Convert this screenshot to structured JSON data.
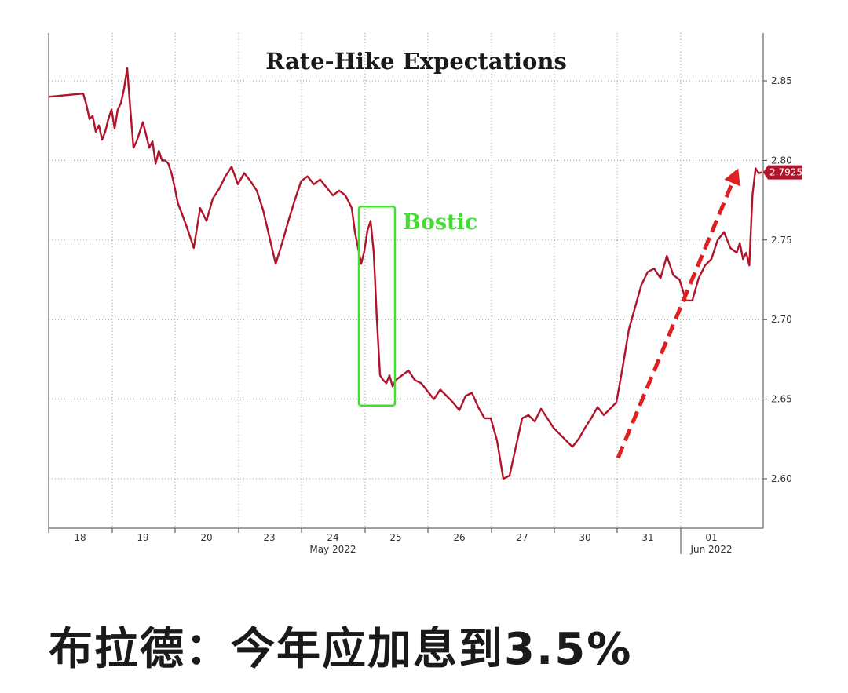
{
  "caption": "布拉德：今年应加息到3.5%",
  "colors": {
    "series": "#b0142a",
    "annotation_box": "#44dd33",
    "arrow": "#e02020",
    "grid": "#9a9a9a"
  },
  "chart_data": {
    "type": "line",
    "title": "Rate-Hike Expectations",
    "xlabel": "",
    "ylabel": "",
    "ylim": [
      2.57,
      2.88
    ],
    "y_ticks": [
      2.6,
      2.65,
      2.7,
      2.75,
      2.8,
      2.85
    ],
    "y_tick_labels": [
      "2.60",
      "2.65",
      "2.70",
      "2.75",
      "2.80",
      "2.85"
    ],
    "grid": true,
    "x_categories": [
      "18",
      "19",
      "20",
      "23",
      "24",
      "25",
      "26",
      "27",
      "30",
      "31",
      "01"
    ],
    "x_sublabels": [
      {
        "under": "24",
        "text": "May 2022"
      },
      {
        "under": "01",
        "text": "Jun 2022"
      }
    ],
    "last_value_label": "2.7925",
    "annotations": [
      {
        "type": "box",
        "label": "Bostic",
        "x_range": [
          4.45,
          5.0
        ],
        "y_range": [
          2.646,
          2.771
        ]
      },
      {
        "type": "arrow",
        "from": [
          8.5,
          2.613
        ],
        "to": [
          10.45,
          2.795
        ]
      }
    ],
    "series": [
      {
        "x": [
          0.0,
          0.05,
          0.1,
          0.15,
          0.2,
          0.25,
          0.3,
          0.35,
          0.4,
          0.45,
          0.5,
          0.55,
          0.6,
          0.65,
          0.7,
          0.75,
          0.8,
          0.85,
          0.9,
          1.0,
          1.1,
          1.15,
          1.2,
          1.25,
          1.3,
          1.35,
          1.4,
          1.45,
          1.5,
          1.55,
          1.6,
          1.7,
          1.8,
          1.9,
          2.0,
          2.1,
          2.2,
          2.3,
          2.4,
          2.5,
          2.6,
          2.7,
          2.8,
          2.9,
          3.0,
          3.1,
          3.2,
          3.3,
          3.4,
          3.5,
          3.6,
          3.7,
          3.8,
          3.9,
          4.0,
          4.1,
          4.2,
          4.3,
          4.35,
          4.4,
          4.45,
          4.5,
          4.55,
          4.6,
          4.65,
          4.7,
          4.75,
          4.8,
          4.85,
          4.9,
          4.95,
          5.0,
          5.1,
          5.2,
          5.3,
          5.4,
          5.5,
          5.6,
          5.7,
          5.8,
          5.9,
          6.0,
          6.1,
          6.2,
          6.3,
          6.4,
          6.5,
          6.6,
          6.7,
          6.8,
          6.9,
          7.0,
          7.1,
          7.2,
          7.3,
          7.4,
          7.5,
          7.6,
          7.7,
          7.8,
          7.9,
          8.0,
          8.1,
          8.2,
          8.3,
          8.4,
          8.5,
          8.6,
          8.7,
          8.8,
          8.9,
          9.0,
          9.1,
          9.2,
          9.3,
          9.4,
          9.5,
          9.6,
          9.7,
          9.8,
          9.9,
          10.0,
          10.1,
          10.2,
          10.3,
          10.4,
          10.45,
          10.5,
          10.55,
          10.6,
          10.65,
          10.7,
          10.75,
          10.8
        ],
        "values": [
          2.84,
          2.842,
          2.835,
          2.826,
          2.828,
          2.818,
          2.822,
          2.813,
          2.818,
          2.826,
          2.832,
          2.82,
          2.832,
          2.836,
          2.845,
          2.858,
          2.832,
          2.808,
          2.812,
          2.824,
          2.808,
          2.812,
          2.798,
          2.806,
          2.8,
          2.8,
          2.798,
          2.792,
          2.783,
          2.773,
          2.768,
          2.757,
          2.745,
          2.77,
          2.762,
          2.776,
          2.782,
          2.79,
          2.796,
          2.785,
          2.792,
          2.787,
          2.781,
          2.769,
          2.752,
          2.735,
          2.748,
          2.762,
          2.775,
          2.787,
          2.79,
          2.785,
          2.788,
          2.783,
          2.778,
          2.781,
          2.778,
          2.77,
          2.755,
          2.745,
          2.735,
          2.743,
          2.756,
          2.762,
          2.742,
          2.7,
          2.665,
          2.662,
          2.66,
          2.665,
          2.658,
          2.662,
          2.665,
          2.668,
          2.662,
          2.66,
          2.655,
          2.65,
          2.656,
          2.652,
          2.648,
          2.643,
          2.652,
          2.654,
          2.645,
          2.638,
          2.638,
          2.624,
          2.6,
          2.602,
          2.62,
          2.638,
          2.64,
          2.636,
          2.644,
          2.638,
          2.632,
          2.628,
          2.624,
          2.62,
          2.625,
          2.632,
          2.638,
          2.645,
          2.64,
          2.644,
          2.648,
          2.67,
          2.694,
          2.708,
          2.722,
          2.73,
          2.732,
          2.726,
          2.74,
          2.728,
          2.725,
          2.712,
          2.712,
          2.726,
          2.734,
          2.738,
          2.75,
          2.755,
          2.745,
          2.742,
          2.748,
          2.738,
          2.742,
          2.734,
          2.778,
          2.795,
          2.792,
          2.7925
        ]
      }
    ]
  }
}
